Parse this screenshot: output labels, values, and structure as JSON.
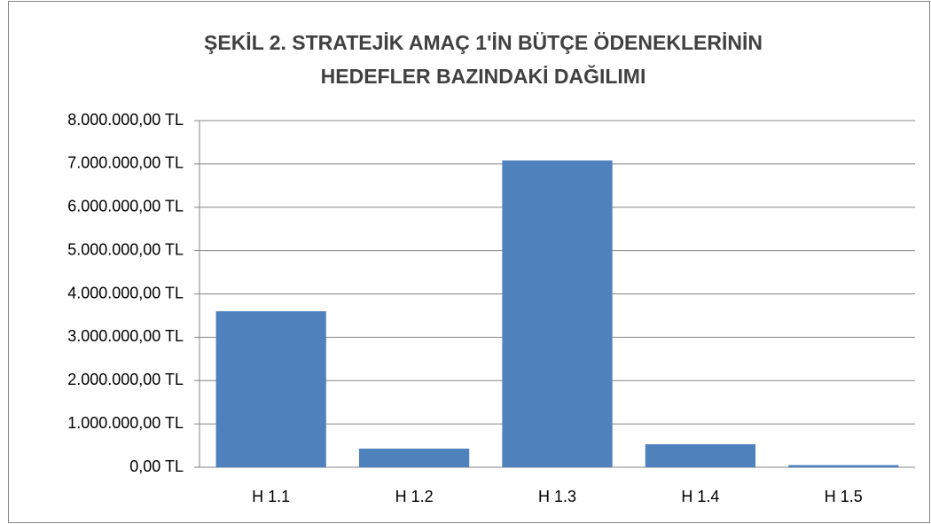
{
  "chart_data": {
    "type": "bar",
    "title": [
      "ŞEKİL 2. STRATEJİK AMAÇ 1'İN BÜTÇE ÖDENEKLERİNİN",
      "HEDEFLER BAZINDAKİ DAĞILIMI"
    ],
    "categories": [
      "H 1.1",
      "H 1.2",
      "H 1.3",
      "H 1.4",
      "H 1.5"
    ],
    "values": [
      3600000,
      430000,
      7080000,
      530000,
      50000
    ],
    "color": "#4f81bd",
    "ylim": [
      0,
      8000000
    ],
    "yticks": [
      {
        "value": 0,
        "label": "0,00 TL"
      },
      {
        "value": 1000000,
        "label": "1.000.000,00 TL"
      },
      {
        "value": 2000000,
        "label": "2.000.000,00 TL"
      },
      {
        "value": 3000000,
        "label": "3.000.000,00 TL"
      },
      {
        "value": 4000000,
        "label": "4.000.000,00 TL"
      },
      {
        "value": 5000000,
        "label": "5.000.000,00 TL"
      },
      {
        "value": 6000000,
        "label": "6.000.000,00 TL"
      },
      {
        "value": 7000000,
        "label": "7.000.000,00 TL"
      },
      {
        "value": 8000000,
        "label": "8.000.000,00 TL"
      }
    ],
    "grid": true
  }
}
